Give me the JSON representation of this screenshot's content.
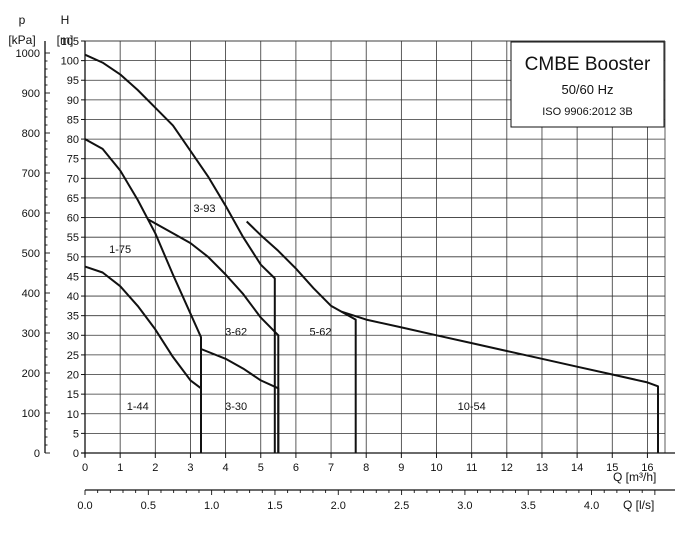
{
  "chart_data": {
    "type": "line",
    "title": "CMBE Booster",
    "subtitle": "50/60 Hz",
    "standard": "ISO 9906:2012 3B",
    "y_left_outer": {
      "label_name": "p",
      "label_unit": "[kPa]",
      "ticks": [
        "0",
        "100",
        "200",
        "300",
        "400",
        "500",
        "600",
        "700",
        "800",
        "900",
        "1000"
      ],
      "range": [
        0,
        1030
      ]
    },
    "y_left_inner": {
      "label_name": "H",
      "label_unit": "[m]",
      "ticks": [
        "0",
        "5",
        "10",
        "15",
        "20",
        "25",
        "30",
        "35",
        "40",
        "45",
        "50",
        "55",
        "60",
        "65",
        "70",
        "75",
        "80",
        "85",
        "90",
        "95",
        "100",
        "105"
      ],
      "range": [
        0,
        105
      ]
    },
    "x_primary": {
      "label": "Q [m³/h]",
      "ticks": [
        "0",
        "1",
        "2",
        "3",
        "4",
        "5",
        "6",
        "7",
        "8",
        "9",
        "10",
        "11",
        "12",
        "13",
        "14",
        "15",
        "16"
      ],
      "range": [
        0,
        16.5
      ]
    },
    "x_secondary": {
      "label": "Q [l/s]",
      "ticks": [
        "0.0",
        "0.5",
        "1.0",
        "1.5",
        "2.0",
        "2.5",
        "3.0",
        "3.5",
        "4.0"
      ],
      "range": [
        0,
        4.58
      ]
    },
    "grid": true,
    "legend": "top-right",
    "series": [
      {
        "name": "1-44",
        "label_at": [
          1.5,
          12
        ],
        "points": [
          [
            0,
            47.5
          ],
          [
            0.5,
            46
          ],
          [
            1,
            42.5
          ],
          [
            1.5,
            37.5
          ],
          [
            2,
            31.5
          ],
          [
            2.5,
            24.5
          ],
          [
            3,
            18.5
          ],
          [
            3.3,
            16.5
          ]
        ]
      },
      {
        "name": "1-75",
        "label_at": [
          1.0,
          52
        ],
        "points": [
          [
            0,
            80
          ],
          [
            0.5,
            77.5
          ],
          [
            1,
            72
          ],
          [
            1.5,
            64.5
          ],
          [
            2,
            56
          ],
          [
            2.5,
            45.5
          ],
          [
            3,
            35.5
          ],
          [
            3.3,
            29.5
          ],
          [
            3.3,
            0
          ]
        ]
      },
      {
        "name": "3-30",
        "label_at": [
          4.3,
          12
        ],
        "points": [
          [
            3.3,
            26.5
          ],
          [
            4,
            24
          ],
          [
            4.5,
            21.5
          ],
          [
            5,
            18.5
          ],
          [
            5.5,
            16.5
          ],
          [
            5.5,
            0
          ]
        ]
      },
      {
        "name": "3-62",
        "label_at": [
          4.3,
          31
        ],
        "points": [
          [
            1.8,
            59.5
          ],
          [
            2.5,
            56
          ],
          [
            3,
            53.5
          ],
          [
            3.5,
            50
          ],
          [
            4,
            45.5
          ],
          [
            4.5,
            40.5
          ],
          [
            5,
            34.5
          ],
          [
            5.5,
            30
          ],
          [
            5.5,
            0
          ]
        ]
      },
      {
        "name": "3-93",
        "label_at": [
          3.4,
          62.5
        ],
        "points": [
          [
            0,
            101.5
          ],
          [
            0.5,
            99.5
          ],
          [
            1,
            96.5
          ],
          [
            1.5,
            92.5
          ],
          [
            2,
            88
          ],
          [
            2.5,
            83.5
          ],
          [
            3,
            77
          ],
          [
            3.5,
            70.5
          ],
          [
            4,
            63
          ],
          [
            4.5,
            55
          ],
          [
            5,
            48
          ],
          [
            5.4,
            44.5
          ],
          [
            5.4,
            0
          ]
        ]
      },
      {
        "name": "5-62",
        "label_at": [
          6.7,
          31
        ],
        "points": [
          [
            4.6,
            59
          ],
          [
            5,
            55.5
          ],
          [
            5.5,
            51.5
          ],
          [
            6,
            47
          ],
          [
            6.5,
            42
          ],
          [
            7,
            37.5
          ],
          [
            7.3,
            36
          ],
          [
            7.7,
            34
          ],
          [
            7.7,
            0
          ]
        ]
      },
      {
        "name": "10-54",
        "label_at": [
          11.0,
          12
        ],
        "points": [
          [
            7.3,
            36
          ],
          [
            8,
            34
          ],
          [
            9,
            32
          ],
          [
            10,
            30
          ],
          [
            11,
            28
          ],
          [
            12,
            26
          ],
          [
            13,
            24
          ],
          [
            14,
            22
          ],
          [
            15,
            20
          ],
          [
            16,
            18
          ],
          [
            16.3,
            17
          ],
          [
            16.3,
            0
          ]
        ]
      }
    ]
  }
}
